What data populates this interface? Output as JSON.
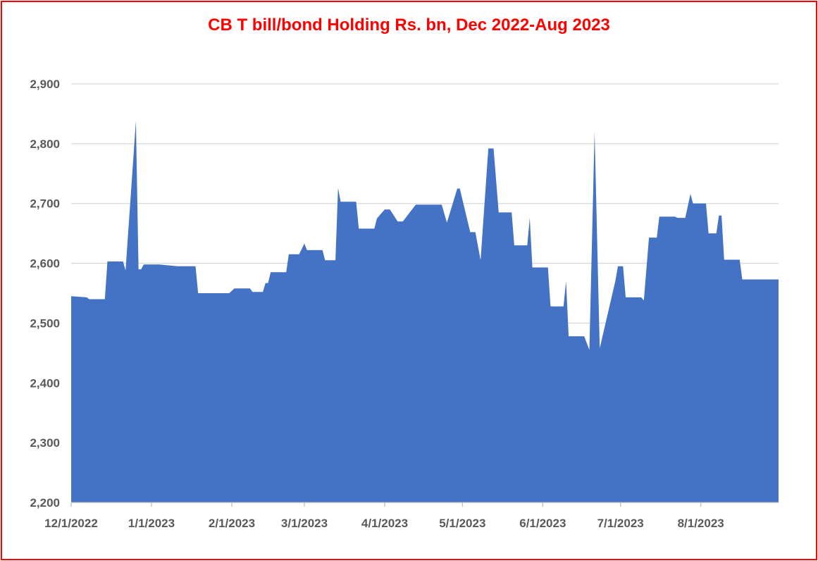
{
  "colors": {
    "area": "#4472c4",
    "title": "#ff0000",
    "border": "#ff0000",
    "grid": "#d9d9d9",
    "text": "#595959"
  },
  "chart_data": {
    "type": "area",
    "title": "CB T bill/bond Holding Rs. bn,  Dec 2022-Aug 2023",
    "xlabel": "",
    "ylabel": "",
    "ylim": [
      2200,
      2900
    ],
    "xlim": [
      "2022-12-01",
      "2023-08-31"
    ],
    "grid": true,
    "legend": "none",
    "y_ticks": [
      2200,
      2300,
      2400,
      2500,
      2600,
      2700,
      2800,
      2900
    ],
    "y_tick_labels": [
      "2,200",
      "2,300",
      "2,400",
      "2,500",
      "2,600",
      "2,700",
      "2,800",
      "2,900"
    ],
    "x_ticks": [
      "2022-12-01",
      "2023-01-01",
      "2023-02-01",
      "2023-03-01",
      "2023-04-01",
      "2023-05-01",
      "2023-06-01",
      "2023-07-01",
      "2023-08-01"
    ],
    "x_tick_labels": [
      "12/1/2022",
      "1/1/2023",
      "2/1/2023",
      "3/1/2023",
      "4/1/2023",
      "5/1/2023",
      "6/1/2023",
      "7/1/2023",
      "8/1/2023"
    ],
    "series": [
      {
        "points": [
          [
            "2022-12-01",
            2545
          ],
          [
            "2022-12-07",
            2543
          ],
          [
            "2022-12-08",
            2540
          ],
          [
            "2022-12-14",
            2540
          ],
          [
            "2022-12-15",
            2603
          ],
          [
            "2022-12-21",
            2603
          ],
          [
            "2022-12-22",
            2588
          ],
          [
            "2022-12-26",
            2838
          ],
          [
            "2022-12-27",
            2590
          ],
          [
            "2022-12-28",
            2590
          ],
          [
            "2022-12-29",
            2598
          ],
          [
            "2023-01-04",
            2598
          ],
          [
            "2023-01-11",
            2595
          ],
          [
            "2023-01-18",
            2595
          ],
          [
            "2023-01-19",
            2550
          ],
          [
            "2023-01-31",
            2550
          ],
          [
            "2023-02-02",
            2558
          ],
          [
            "2023-02-08",
            2558
          ],
          [
            "2023-02-09",
            2552
          ],
          [
            "2023-02-13",
            2552
          ],
          [
            "2023-02-14",
            2567
          ],
          [
            "2023-02-15",
            2567
          ],
          [
            "2023-02-16",
            2585
          ],
          [
            "2023-02-22",
            2585
          ],
          [
            "2023-02-23",
            2615
          ],
          [
            "2023-02-27",
            2615
          ],
          [
            "2023-03-01",
            2633
          ],
          [
            "2023-03-02",
            2622
          ],
          [
            "2023-03-08",
            2622
          ],
          [
            "2023-03-09",
            2605
          ],
          [
            "2023-03-13",
            2605
          ],
          [
            "2023-03-14",
            2726
          ],
          [
            "2023-03-15",
            2703
          ],
          [
            "2023-03-21",
            2703
          ],
          [
            "2023-03-22",
            2658
          ],
          [
            "2023-03-28",
            2658
          ],
          [
            "2023-03-29",
            2675
          ],
          [
            "2023-04-01",
            2690
          ],
          [
            "2023-04-03",
            2690
          ],
          [
            "2023-04-06",
            2670
          ],
          [
            "2023-04-08",
            2670
          ],
          [
            "2023-04-13",
            2698
          ],
          [
            "2023-04-23",
            2698
          ],
          [
            "2023-04-25",
            2668
          ],
          [
            "2023-04-29",
            2725
          ],
          [
            "2023-04-30",
            2725
          ],
          [
            "2023-05-04",
            2652
          ],
          [
            "2023-05-06",
            2652
          ],
          [
            "2023-05-08",
            2605
          ],
          [
            "2023-05-11",
            2792
          ],
          [
            "2023-05-13",
            2792
          ],
          [
            "2023-05-15",
            2685
          ],
          [
            "2023-05-20",
            2685
          ],
          [
            "2023-05-21",
            2630
          ],
          [
            "2023-05-26",
            2630
          ],
          [
            "2023-05-27",
            2676
          ],
          [
            "2023-05-28",
            2593
          ],
          [
            "2023-06-03",
            2593
          ],
          [
            "2023-06-04",
            2528
          ],
          [
            "2023-06-09",
            2528
          ],
          [
            "2023-06-10",
            2570
          ],
          [
            "2023-06-11",
            2478
          ],
          [
            "2023-06-17",
            2478
          ],
          [
            "2023-06-19",
            2455
          ],
          [
            "2023-06-21",
            2820
          ],
          [
            "2023-06-23",
            2458
          ],
          [
            "2023-06-29",
            2570
          ],
          [
            "2023-06-30",
            2595
          ],
          [
            "2023-07-02",
            2595
          ],
          [
            "2023-07-03",
            2543
          ],
          [
            "2023-07-09",
            2543
          ],
          [
            "2023-07-10",
            2538
          ],
          [
            "2023-07-12",
            2643
          ],
          [
            "2023-07-15",
            2643
          ],
          [
            "2023-07-16",
            2678
          ],
          [
            "2023-07-22",
            2678
          ],
          [
            "2023-07-23",
            2676
          ],
          [
            "2023-07-26",
            2676
          ],
          [
            "2023-07-28",
            2716
          ],
          [
            "2023-07-29",
            2700
          ],
          [
            "2023-08-03",
            2700
          ],
          [
            "2023-08-04",
            2650
          ],
          [
            "2023-08-07",
            2650
          ],
          [
            "2023-08-08",
            2680
          ],
          [
            "2023-08-09",
            2680
          ],
          [
            "2023-08-10",
            2606
          ],
          [
            "2023-08-16",
            2606
          ],
          [
            "2023-08-17",
            2573
          ],
          [
            "2023-08-31",
            2573
          ]
        ]
      }
    ]
  }
}
